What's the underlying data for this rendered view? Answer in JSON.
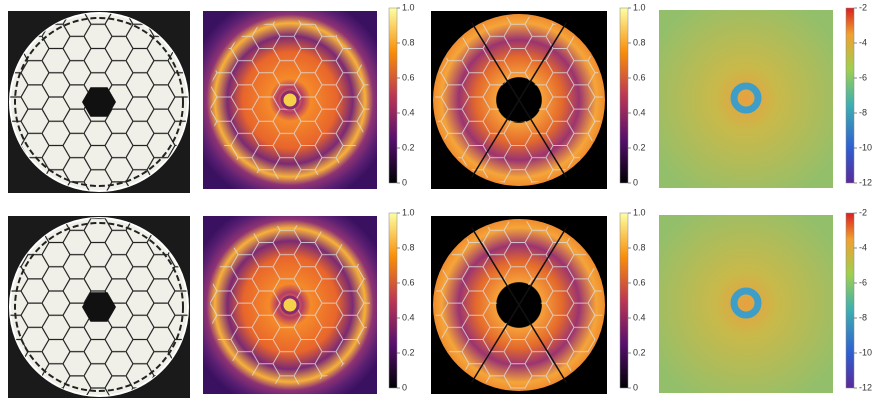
{
  "rows": [
    {
      "colorbars": [
        {
          "lim": [
            0,
            1
          ],
          "ticks": [
            0,
            0.2,
            0.4,
            0.6,
            0.8,
            {
              "value": 1,
              "label": "1.0"
            }
          ]
        },
        {
          "lim": [
            0,
            1
          ],
          "ticks": [
            0,
            0.2,
            0.4,
            0.6,
            0.8,
            {
              "value": 1,
              "label": "1.0"
            }
          ]
        },
        {
          "lim": [
            -12,
            -2
          ],
          "ticks": [
            -2,
            -4,
            -6,
            -8,
            -10,
            -12
          ]
        }
      ]
    },
    {
      "colorbars": [
        {
          "lim": [
            0,
            1
          ],
          "ticks": [
            0,
            0.2,
            0.4,
            0.6,
            0.8,
            {
              "value": 1,
              "label": "1.0"
            }
          ]
        },
        {
          "lim": [
            0,
            1
          ],
          "ticks": [
            0,
            0.2,
            0.4,
            0.6,
            0.8,
            {
              "value": 1,
              "label": "1.0"
            }
          ]
        },
        {
          "lim": [
            -12,
            -2
          ],
          "ticks": [
            -2,
            -4,
            -6,
            -8,
            -10,
            -12
          ]
        }
      ]
    }
  ]
}
